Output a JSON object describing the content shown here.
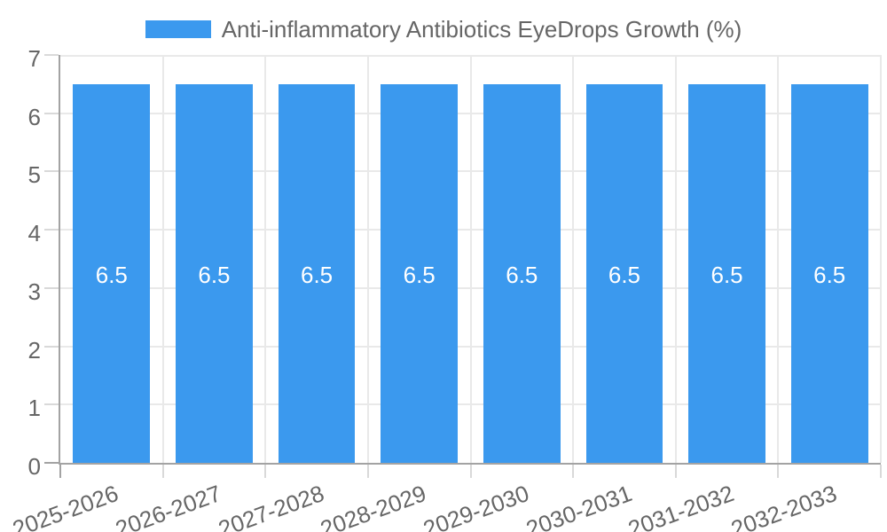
{
  "chart_data": {
    "type": "bar",
    "title": "",
    "categories": [
      "2025-2026",
      "2026-2027",
      "2027-2028",
      "2028-2029",
      "2029-2030",
      "2030-2031",
      "2031-2032",
      "2032-2033"
    ],
    "series": [
      {
        "name": "Anti-inflammatory Antibiotics EyeDrops Growth (%)",
        "values": [
          6.5,
          6.5,
          6.5,
          6.5,
          6.5,
          6.5,
          6.5,
          6.5
        ]
      }
    ],
    "xlabel": "",
    "ylabel": "",
    "ylim": [
      0,
      7
    ],
    "yticks": [
      0,
      1,
      2,
      3,
      4,
      5,
      6,
      7
    ],
    "grid": true,
    "legend_position": "top",
    "x_label_rotation_deg": -20,
    "bar_width_fraction": 0.75,
    "colors": {
      "bar": "#3B99EE",
      "bar_value_text": "#FFFFFF",
      "axis_line": "#A3A3A3",
      "grid_line": "#E9E9E9",
      "tick_mark": "#D9D9D9",
      "label_text": "#666666",
      "background": "#FFFFFF"
    }
  }
}
